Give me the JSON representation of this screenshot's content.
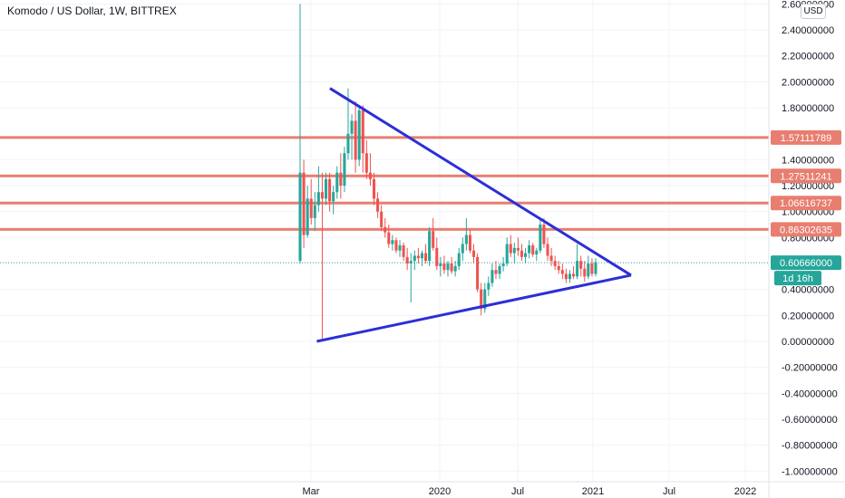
{
  "header": {
    "title": "Komodo / US Dollar, 1W, BITTREX"
  },
  "currency": {
    "label": "USD"
  },
  "colors": {
    "up": "#26a69a",
    "down": "#ef5350",
    "trend": "#2b2fd6",
    "level": "#e87e70",
    "current": "#26a69a",
    "grid": "#f0f3fa"
  },
  "chart_data": {
    "type": "candlestick",
    "title": "Komodo / US Dollar, 1W, BITTREX",
    "xlabel": "",
    "ylabel": "",
    "ylim": [
      -1.0,
      2.6
    ],
    "y_ticks": [
      "2.60000000",
      "2.40000000",
      "2.20000000",
      "2.00000000",
      "1.80000000",
      "1.40000000",
      "1.20000000",
      "1.00000000",
      "0.80000000",
      "0.40000000",
      "0.20000000",
      "0.00000000",
      "-0.20000000",
      "-0.40000000",
      "-0.60000000",
      "-0.80000000",
      "-1.00000000"
    ],
    "y_tick_values": [
      2.6,
      2.4,
      2.2,
      2.0,
      1.8,
      1.4,
      1.2,
      1.0,
      0.8,
      0.4,
      0.2,
      0.0,
      -0.2,
      -0.4,
      -0.6,
      -0.8,
      -1.0
    ],
    "x_ticks": [
      "Mar",
      "2020",
      "Jul",
      "2021",
      "Jul",
      "2022"
    ],
    "x_tick_dates": [
      "2018-03",
      "2020-01",
      "2020-07",
      "2021-01",
      "2021-07",
      "2022-01"
    ],
    "horizontal_levels": [
      1.57111789,
      1.27511241,
      1.06616737,
      0.86302635
    ],
    "horizontal_level_labels": [
      "1.57111789",
      "1.27511241",
      "1.06616737",
      "0.86302635"
    ],
    "current_price": 0.60666,
    "current_price_label": "0.60666000",
    "countdown_label": "1d 16h",
    "trend_lines": [
      {
        "name": "descending",
        "from": {
          "date": "2018-05",
          "y": 1.95
        },
        "to": {
          "date": "2021-04",
          "y": 0.51
        }
      },
      {
        "name": "ascending",
        "from": {
          "date": "2018-04",
          "y": 0.0
        },
        "to": {
          "date": "2021-04",
          "y": 0.51
        }
      }
    ],
    "candles": [
      {
        "o": 0.62,
        "h": 2.6,
        "l": 0.6,
        "c": 1.3
      },
      {
        "o": 1.3,
        "h": 1.4,
        "l": 0.72,
        "c": 0.82
      },
      {
        "o": 0.82,
        "h": 1.2,
        "l": 0.8,
        "c": 1.1
      },
      {
        "o": 1.1,
        "h": 1.25,
        "l": 0.9,
        "c": 0.95
      },
      {
        "o": 0.95,
        "h": 1.15,
        "l": 0.85,
        "c": 1.05
      },
      {
        "o": 1.05,
        "h": 1.35,
        "l": 1.0,
        "c": 1.15
      },
      {
        "o": 1.15,
        "h": 1.3,
        "l": 0.0,
        "c": 1.1
      },
      {
        "o": 1.1,
        "h": 1.3,
        "l": 1.05,
        "c": 1.25
      },
      {
        "o": 1.25,
        "h": 1.3,
        "l": 1.0,
        "c": 1.08
      },
      {
        "o": 1.08,
        "h": 1.2,
        "l": 0.98,
        "c": 1.15
      },
      {
        "o": 1.15,
        "h": 1.35,
        "l": 1.1,
        "c": 1.3
      },
      {
        "o": 1.3,
        "h": 1.45,
        "l": 1.1,
        "c": 1.2
      },
      {
        "o": 1.2,
        "h": 1.5,
        "l": 1.15,
        "c": 1.45
      },
      {
        "o": 1.45,
        "h": 1.95,
        "l": 1.4,
        "c": 1.6
      },
      {
        "o": 1.6,
        "h": 1.75,
        "l": 1.4,
        "c": 1.7
      },
      {
        "o": 1.7,
        "h": 1.85,
        "l": 1.3,
        "c": 1.4
      },
      {
        "o": 1.4,
        "h": 1.82,
        "l": 1.35,
        "c": 1.78
      },
      {
        "o": 1.78,
        "h": 1.82,
        "l": 1.3,
        "c": 1.45
      },
      {
        "o": 1.45,
        "h": 1.55,
        "l": 1.25,
        "c": 1.3
      },
      {
        "o": 1.3,
        "h": 1.45,
        "l": 1.2,
        "c": 1.25
      },
      {
        "o": 1.25,
        "h": 1.3,
        "l": 1.05,
        "c": 1.1
      },
      {
        "o": 1.1,
        "h": 1.15,
        "l": 0.95,
        "c": 1.0
      },
      {
        "o": 1.0,
        "h": 1.05,
        "l": 0.85,
        "c": 0.88
      },
      {
        "o": 0.88,
        "h": 0.95,
        "l": 0.8,
        "c": 0.84
      },
      {
        "o": 0.84,
        "h": 0.9,
        "l": 0.72,
        "c": 0.75
      },
      {
        "o": 0.75,
        "h": 0.82,
        "l": 0.7,
        "c": 0.78
      },
      {
        "o": 0.78,
        "h": 0.8,
        "l": 0.68,
        "c": 0.7
      },
      {
        "o": 0.7,
        "h": 0.78,
        "l": 0.65,
        "c": 0.74
      },
      {
        "o": 0.74,
        "h": 0.76,
        "l": 0.62,
        "c": 0.65
      },
      {
        "o": 0.65,
        "h": 0.72,
        "l": 0.55,
        "c": 0.6
      },
      {
        "o": 0.6,
        "h": 0.68,
        "l": 0.3,
        "c": 0.62
      },
      {
        "o": 0.62,
        "h": 0.7,
        "l": 0.55,
        "c": 0.66
      },
      {
        "o": 0.66,
        "h": 0.72,
        "l": 0.6,
        "c": 0.64
      },
      {
        "o": 0.64,
        "h": 0.7,
        "l": 0.58,
        "c": 0.68
      },
      {
        "o": 0.68,
        "h": 0.75,
        "l": 0.6,
        "c": 0.62
      },
      {
        "o": 0.62,
        "h": 0.88,
        "l": 0.58,
        "c": 0.85
      },
      {
        "o": 0.85,
        "h": 0.95,
        "l": 0.7,
        "c": 0.72
      },
      {
        "o": 0.72,
        "h": 0.8,
        "l": 0.55,
        "c": 0.58
      },
      {
        "o": 0.58,
        "h": 0.65,
        "l": 0.5,
        "c": 0.6
      },
      {
        "o": 0.6,
        "h": 0.66,
        "l": 0.52,
        "c": 0.55
      },
      {
        "o": 0.55,
        "h": 0.62,
        "l": 0.5,
        "c": 0.6
      },
      {
        "o": 0.6,
        "h": 0.65,
        "l": 0.52,
        "c": 0.54
      },
      {
        "o": 0.54,
        "h": 0.62,
        "l": 0.5,
        "c": 0.58
      },
      {
        "o": 0.58,
        "h": 0.72,
        "l": 0.55,
        "c": 0.68
      },
      {
        "o": 0.68,
        "h": 0.8,
        "l": 0.62,
        "c": 0.75
      },
      {
        "o": 0.75,
        "h": 0.95,
        "l": 0.7,
        "c": 0.82
      },
      {
        "o": 0.82,
        "h": 0.86,
        "l": 0.68,
        "c": 0.7
      },
      {
        "o": 0.7,
        "h": 0.75,
        "l": 0.6,
        "c": 0.65
      },
      {
        "o": 0.65,
        "h": 0.68,
        "l": 0.38,
        "c": 0.4
      },
      {
        "o": 0.4,
        "h": 0.45,
        "l": 0.2,
        "c": 0.25
      },
      {
        "o": 0.25,
        "h": 0.45,
        "l": 0.22,
        "c": 0.4
      },
      {
        "o": 0.4,
        "h": 0.5,
        "l": 0.35,
        "c": 0.45
      },
      {
        "o": 0.45,
        "h": 0.6,
        "l": 0.42,
        "c": 0.55
      },
      {
        "o": 0.55,
        "h": 0.62,
        "l": 0.48,
        "c": 0.52
      },
      {
        "o": 0.52,
        "h": 0.6,
        "l": 0.48,
        "c": 0.58
      },
      {
        "o": 0.58,
        "h": 0.65,
        "l": 0.54,
        "c": 0.6
      },
      {
        "o": 0.6,
        "h": 0.8,
        "l": 0.58,
        "c": 0.75
      },
      {
        "o": 0.75,
        "h": 0.82,
        "l": 0.65,
        "c": 0.68
      },
      {
        "o": 0.68,
        "h": 0.76,
        "l": 0.6,
        "c": 0.72
      },
      {
        "o": 0.72,
        "h": 0.8,
        "l": 0.66,
        "c": 0.7
      },
      {
        "o": 0.7,
        "h": 0.75,
        "l": 0.62,
        "c": 0.65
      },
      {
        "o": 0.65,
        "h": 0.72,
        "l": 0.6,
        "c": 0.68
      },
      {
        "o": 0.68,
        "h": 0.78,
        "l": 0.64,
        "c": 0.74
      },
      {
        "o": 0.74,
        "h": 0.76,
        "l": 0.65,
        "c": 0.67
      },
      {
        "o": 0.67,
        "h": 0.72,
        "l": 0.62,
        "c": 0.7
      },
      {
        "o": 0.7,
        "h": 0.95,
        "l": 0.68,
        "c": 0.9
      },
      {
        "o": 0.9,
        "h": 0.95,
        "l": 0.72,
        "c": 0.75
      },
      {
        "o": 0.75,
        "h": 0.8,
        "l": 0.62,
        "c": 0.66
      },
      {
        "o": 0.66,
        "h": 0.72,
        "l": 0.58,
        "c": 0.62
      },
      {
        "o": 0.62,
        "h": 0.66,
        "l": 0.55,
        "c": 0.58
      },
      {
        "o": 0.58,
        "h": 0.62,
        "l": 0.52,
        "c": 0.55
      },
      {
        "o": 0.55,
        "h": 0.6,
        "l": 0.48,
        "c": 0.52
      },
      {
        "o": 0.52,
        "h": 0.56,
        "l": 0.45,
        "c": 0.48
      },
      {
        "o": 0.48,
        "h": 0.55,
        "l": 0.45,
        "c": 0.52
      },
      {
        "o": 0.52,
        "h": 0.58,
        "l": 0.48,
        "c": 0.5
      },
      {
        "o": 0.5,
        "h": 0.75,
        "l": 0.48,
        "c": 0.62
      },
      {
        "o": 0.62,
        "h": 0.66,
        "l": 0.5,
        "c": 0.56
      },
      {
        "o": 0.56,
        "h": 0.62,
        "l": 0.46,
        "c": 0.5
      },
      {
        "o": 0.5,
        "h": 0.66,
        "l": 0.48,
        "c": 0.6
      },
      {
        "o": 0.6,
        "h": 0.64,
        "l": 0.5,
        "c": 0.52
      },
      {
        "o": 0.52,
        "h": 0.64,
        "l": 0.5,
        "c": 0.61
      }
    ],
    "grid": true,
    "legend": "none"
  }
}
